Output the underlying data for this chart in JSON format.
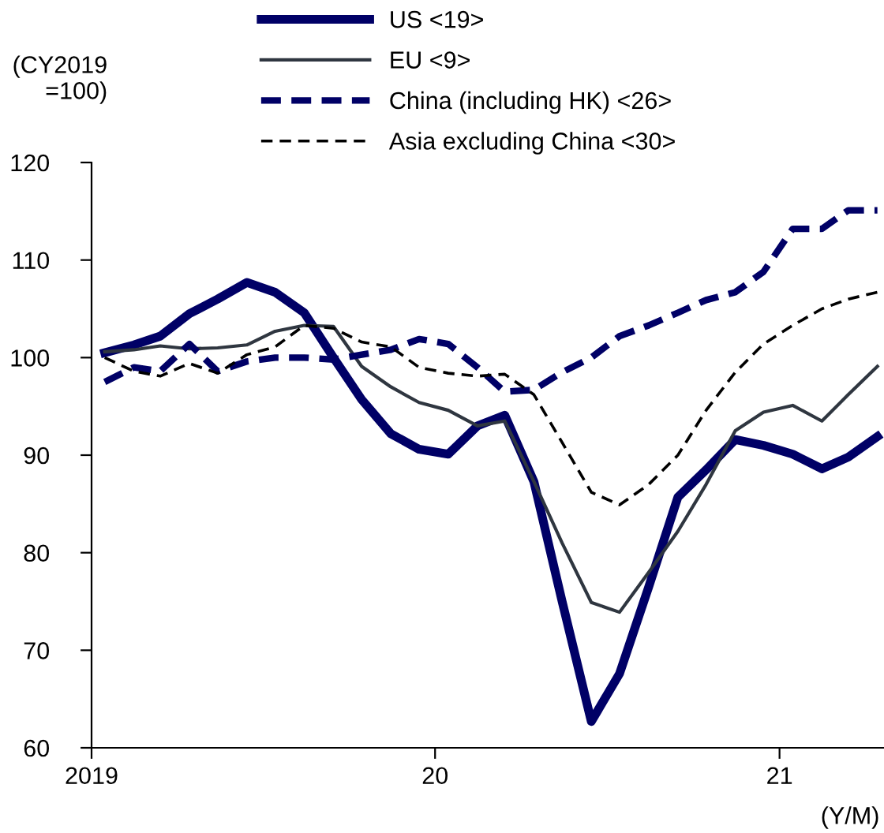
{
  "chart_data": {
    "type": "line",
    "ylabel": "(CY2019\n=100)",
    "x": [
      "2019-01-15",
      "2019-02-15",
      "2019-03-15",
      "2019-04-15",
      "2019-05-15",
      "2019-06-15",
      "2019-07-15",
      "2019-08-15",
      "2019-09-15",
      "2019-10-15",
      "2019-11-15",
      "2019-12-15",
      "2020-01-15",
      "2020-02-15",
      "2020-03-15",
      "2020-04-15",
      "2020-05-15",
      "2020-06-15",
      "2020-07-15",
      "2020-08-15",
      "2020-09-15",
      "2020-10-15",
      "2020-11-15",
      "2020-12-15",
      "2021-01-15",
      "2021-02-15",
      "2021-03-15",
      "2021-04-15"
    ],
    "series": [
      {
        "name": "US <19>",
        "color": "#000066",
        "line_style": "solid",
        "values": [
          100.5,
          101.3,
          102.2,
          104.5,
          106,
          107.7,
          106.7,
          104.6,
          100,
          95.7,
          92.2,
          90.6,
          90.1,
          93,
          94.1,
          87.3,
          75,
          62.7,
          67.6,
          76.5,
          85.7,
          88.5,
          91.6,
          91,
          90.1,
          88.6,
          89.8,
          91.9
        ]
      },
      {
        "name": "EU <9>",
        "color": "#2f3640",
        "line_style": "solid",
        "values": [
          100.6,
          100.8,
          101.2,
          100.9,
          101,
          101.3,
          102.7,
          103.3,
          103.2,
          99.1,
          97,
          95.4,
          94.6,
          93,
          93.5,
          87.3,
          81,
          74.9,
          73.9,
          78,
          82.2,
          87,
          92.5,
          94.4,
          95.1,
          93.5,
          96.2,
          99.1
        ]
      },
      {
        "name": "China (including HK) <26>",
        "color": "#000066",
        "line_style": "dashed",
        "values": [
          97.5,
          99,
          98.6,
          101.4,
          98.6,
          99.6,
          100,
          100,
          99.8,
          100.3,
          100.8,
          101.9,
          101.4,
          99,
          96.5,
          96.7,
          98.5,
          100,
          102.2,
          103.3,
          104.6,
          105.9,
          106.7,
          108.8,
          113.2,
          113.2,
          115.1,
          115.1
        ]
      },
      {
        "name": "Asia excluding China <30>",
        "color": "#000000",
        "line_style": "dashed",
        "values": [
          100,
          98.6,
          98.1,
          99.4,
          98.4,
          100.3,
          101.1,
          103.3,
          103,
          101.6,
          101.1,
          99,
          98.4,
          98.1,
          98.3,
          96.2,
          91.3,
          86.2,
          84.9,
          87,
          90,
          94.6,
          98.5,
          101.4,
          103.3,
          105,
          106,
          106.7
        ]
      }
    ],
    "xlim": [
      "2019-01-01",
      "2021-04-22"
    ],
    "xticks": [
      {
        "value": "2019-01-01",
        "label": "2019"
      },
      {
        "value": "2020-01-01",
        "label": "20"
      },
      {
        "value": "2021-01-01",
        "label": "21"
      }
    ],
    "ylim": [
      60,
      120
    ],
    "yticks": [
      60,
      70,
      80,
      90,
      100,
      110,
      120
    ],
    "annotations": [
      "(Y/M)"
    ],
    "grid": false,
    "legend": "top"
  }
}
